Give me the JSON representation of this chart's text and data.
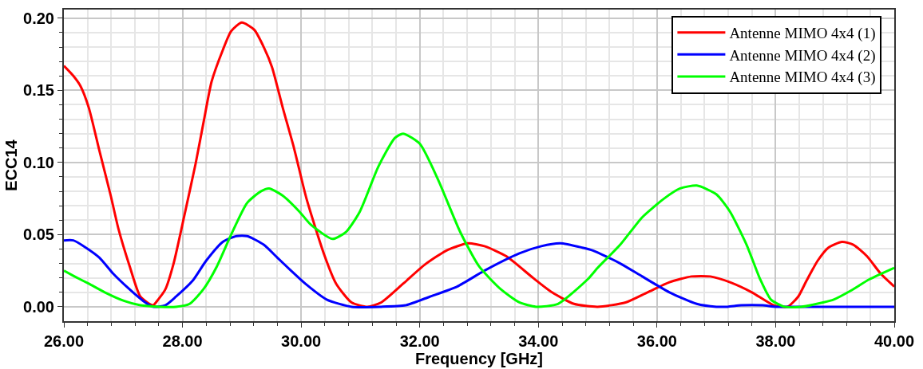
{
  "chart_data": {
    "type": "line",
    "xlabel": "Frequency [GHz]",
    "ylabel": "ECC14",
    "xlim": [
      26,
      40
    ],
    "ylim": [
      -0.01,
      0.206
    ],
    "xticks": [
      {
        "value": 26,
        "label": "26.00"
      },
      {
        "value": 28,
        "label": "28.00"
      },
      {
        "value": 30,
        "label": "30.00"
      },
      {
        "value": 32,
        "label": "32.00"
      },
      {
        "value": 34,
        "label": "34.00"
      },
      {
        "value": 36,
        "label": "36.00"
      },
      {
        "value": 38,
        "label": "38.00"
      },
      {
        "value": 40,
        "label": "40.00"
      }
    ],
    "yticks": [
      {
        "value": 0,
        "label": "0.00"
      },
      {
        "value": 0.05,
        "label": "0.05"
      },
      {
        "value": 0.1,
        "label": "0.10"
      },
      {
        "value": 0.15,
        "label": "0.15"
      },
      {
        "value": 0.2,
        "label": "0.20"
      }
    ],
    "grid": true,
    "legend": "top right",
    "marker": "none",
    "line_style": "solid",
    "series": [
      {
        "name": "Antenne MIMO 4x4 (1)",
        "color": "#ff0000",
        "x": [
          26.0,
          26.16,
          26.28,
          26.42,
          26.6,
          26.79,
          26.92,
          27.11,
          27.29,
          27.5,
          27.59,
          27.71,
          27.85,
          28.03,
          28.22,
          28.36,
          28.49,
          28.68,
          28.82,
          29.0,
          29.21,
          29.37,
          29.51,
          29.69,
          29.88,
          30.09,
          30.39,
          30.59,
          30.85,
          31.12,
          31.35,
          31.72,
          32.08,
          32.45,
          32.81,
          33.09,
          33.46,
          33.91,
          34.23,
          34.6,
          35.0,
          35.47,
          35.84,
          36.21,
          36.58,
          36.9,
          37.23,
          37.6,
          37.97,
          38.2,
          38.38,
          38.52,
          38.71,
          38.89,
          39.12,
          39.31,
          39.54,
          39.77,
          40.0
        ],
        "values": [
          0.167,
          0.16,
          0.153,
          0.138,
          0.108,
          0.077,
          0.054,
          0.028,
          0.007,
          0.001,
          0.005,
          0.012,
          0.03,
          0.063,
          0.099,
          0.129,
          0.156,
          0.178,
          0.191,
          0.197,
          0.192,
          0.18,
          0.166,
          0.138,
          0.11,
          0.075,
          0.036,
          0.016,
          0.003,
          0.0,
          0.003,
          0.016,
          0.029,
          0.039,
          0.044,
          0.042,
          0.035,
          0.02,
          0.01,
          0.002,
          0.0,
          0.003,
          0.01,
          0.017,
          0.021,
          0.021,
          0.017,
          0.01,
          0.001,
          0.0,
          0.007,
          0.018,
          0.032,
          0.041,
          0.045,
          0.043,
          0.035,
          0.023,
          0.014
        ]
      },
      {
        "name": "Antenne MIMO 4x4 (2)",
        "color": "#0000ff",
        "x": [
          26.0,
          26.16,
          26.37,
          26.6,
          26.83,
          27.11,
          27.34,
          27.5,
          27.71,
          27.89,
          28.17,
          28.4,
          28.68,
          28.91,
          29.09,
          29.37,
          29.6,
          29.83,
          30.07,
          30.43,
          30.85,
          31.35,
          31.76,
          32.17,
          32.63,
          33.09,
          33.68,
          34.05,
          34.37,
          34.74,
          34.92,
          35.38,
          35.75,
          36.21,
          36.67,
          37.0,
          37.19,
          37.42,
          37.78,
          38.01,
          38.8,
          40.0
        ],
        "values": [
          0.046,
          0.046,
          0.041,
          0.034,
          0.023,
          0.012,
          0.004,
          0.0,
          0.001,
          0.007,
          0.018,
          0.032,
          0.045,
          0.049,
          0.049,
          0.043,
          0.034,
          0.025,
          0.016,
          0.005,
          0.0,
          0.0,
          0.001,
          0.007,
          0.014,
          0.025,
          0.037,
          0.042,
          0.044,
          0.041,
          0.039,
          0.03,
          0.021,
          0.01,
          0.002,
          0.0,
          0.0,
          0.001,
          0.001,
          0.0,
          0.0,
          0.0
        ]
      },
      {
        "name": "Antenne MIMO 4x4 (3)",
        "color": "#00ff00",
        "x": [
          26.0,
          26.18,
          26.42,
          26.69,
          27.02,
          27.29,
          27.62,
          27.89,
          28.12,
          28.35,
          28.58,
          28.82,
          29.09,
          29.32,
          29.46,
          29.69,
          29.97,
          30.16,
          30.53,
          30.76,
          30.99,
          31.3,
          31.58,
          31.72,
          32.0,
          32.31,
          32.68,
          33.0,
          33.37,
          33.68,
          33.96,
          34.33,
          34.83,
          35.0,
          35.38,
          35.75,
          36.12,
          36.39,
          36.67,
          37.0,
          37.23,
          37.51,
          37.74,
          37.92,
          38.15,
          38.43,
          38.8,
          38.98,
          39.26,
          39.58,
          40.0
        ],
        "values": [
          0.025,
          0.021,
          0.016,
          0.01,
          0.004,
          0.001,
          0.0,
          0.0,
          0.002,
          0.012,
          0.028,
          0.05,
          0.072,
          0.08,
          0.082,
          0.077,
          0.066,
          0.057,
          0.047,
          0.052,
          0.066,
          0.097,
          0.117,
          0.12,
          0.113,
          0.088,
          0.052,
          0.028,
          0.012,
          0.003,
          0.0,
          0.002,
          0.019,
          0.027,
          0.043,
          0.062,
          0.075,
          0.082,
          0.084,
          0.078,
          0.066,
          0.043,
          0.019,
          0.005,
          0.0,
          0.0,
          0.003,
          0.005,
          0.011,
          0.019,
          0.027
        ]
      }
    ]
  }
}
